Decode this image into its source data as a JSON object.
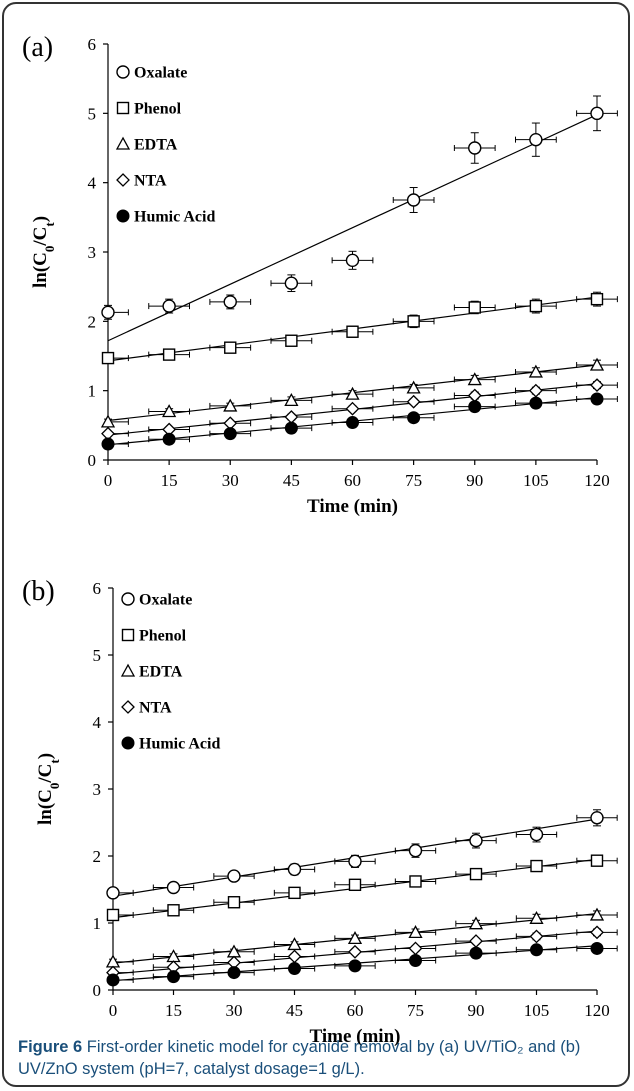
{
  "caption": {
    "figure_number": "Figure 6",
    "text": "First-order kinetic model for cyanide removal by (a) UV/TiO₂ and (b) UV/ZnO system (pH=7, catalyst dosage=1 g/L)."
  },
  "colors": {
    "ink": "#000000",
    "caption": "#1a4f7a",
    "frame": "#333333"
  },
  "chart_data": [
    {
      "type": "scatter",
      "panel_label": "(a)",
      "xlabel": "Time (min)",
      "ylabel": "ln(C0/Ct)",
      "xlim": [
        0,
        120
      ],
      "ylim": [
        0,
        6
      ],
      "x_ticks": [
        0,
        15,
        30,
        45,
        60,
        75,
        90,
        105,
        120
      ],
      "y_ticks": [
        0,
        1,
        2,
        3,
        4,
        5,
        6
      ],
      "legend_position": "top-left",
      "x_error": 5,
      "x": [
        0,
        15,
        30,
        45,
        60,
        75,
        90,
        105,
        120
      ],
      "series": [
        {
          "name": "Oxalate",
          "marker": "circle",
          "values": [
            2.13,
            2.22,
            2.28,
            2.55,
            2.88,
            3.75,
            4.5,
            4.62,
            5.0
          ],
          "y_error": [
            0.1,
            0.1,
            0.1,
            0.12,
            0.13,
            0.18,
            0.22,
            0.24,
            0.25
          ],
          "fit": [
            1.72,
            4.98
          ]
        },
        {
          "name": "Phenol",
          "marker": "square",
          "values": [
            1.47,
            1.52,
            1.62,
            1.72,
            1.85,
            2.0,
            2.2,
            2.22,
            2.32
          ],
          "y_error": [
            0.05,
            0.05,
            0.06,
            0.07,
            0.08,
            0.09,
            0.09,
            0.1,
            0.1
          ],
          "fit": [
            1.43,
            2.35
          ]
        },
        {
          "name": "EDTA",
          "marker": "triangle",
          "values": [
            0.55,
            0.7,
            0.78,
            0.86,
            0.95,
            1.04,
            1.16,
            1.27,
            1.37
          ],
          "y_error": [
            0.04,
            0.04,
            0.04,
            0.05,
            0.05,
            0.05,
            0.06,
            0.06,
            0.07
          ],
          "fit": [
            0.57,
            1.37
          ]
        },
        {
          "name": "NTA",
          "marker": "diamond",
          "values": [
            0.38,
            0.44,
            0.53,
            0.62,
            0.74,
            0.84,
            0.93,
            1.0,
            1.08
          ],
          "y_error": [
            0.03,
            0.03,
            0.03,
            0.04,
            0.04,
            0.04,
            0.05,
            0.05,
            0.05
          ],
          "fit": [
            0.36,
            1.1
          ]
        },
        {
          "name": "Humic Acid",
          "marker": "filled-circle",
          "values": [
            0.23,
            0.3,
            0.38,
            0.46,
            0.54,
            0.61,
            0.77,
            0.82,
            0.88
          ],
          "y_error": [
            0.03,
            0.03,
            0.03,
            0.03,
            0.04,
            0.04,
            0.04,
            0.04,
            0.05
          ],
          "fit": [
            0.22,
            0.9
          ]
        }
      ]
    },
    {
      "type": "scatter",
      "panel_label": "(b)",
      "xlabel": "Time (min)",
      "ylabel": "ln(C0/Ct)",
      "xlim": [
        0,
        120
      ],
      "ylim": [
        0,
        6
      ],
      "x_ticks": [
        0,
        15,
        30,
        45,
        60,
        75,
        90,
        105,
        120
      ],
      "y_ticks": [
        0,
        1,
        2,
        3,
        4,
        5,
        6
      ],
      "legend_position": "top-left",
      "x_error": 5,
      "x": [
        0,
        15,
        30,
        45,
        60,
        75,
        90,
        105,
        120
      ],
      "series": [
        {
          "name": "Oxalate",
          "marker": "circle",
          "values": [
            1.45,
            1.53,
            1.7,
            1.8,
            1.92,
            2.08,
            2.23,
            2.32,
            2.57
          ],
          "y_error": [
            0.06,
            0.06,
            0.07,
            0.08,
            0.09,
            0.1,
            0.11,
            0.11,
            0.12
          ],
          "fit": [
            1.4,
            2.55
          ]
        },
        {
          "name": "Phenol",
          "marker": "square",
          "values": [
            1.12,
            1.19,
            1.31,
            1.45,
            1.57,
            1.62,
            1.73,
            1.85,
            1.93
          ],
          "y_error": [
            0.05,
            0.05,
            0.05,
            0.06,
            0.06,
            0.07,
            0.07,
            0.08,
            0.08
          ],
          "fit": [
            1.08,
            1.95
          ]
        },
        {
          "name": "EDTA",
          "marker": "triangle",
          "values": [
            0.42,
            0.5,
            0.57,
            0.68,
            0.77,
            0.86,
            0.99,
            1.07,
            1.12
          ],
          "y_error": [
            0.04,
            0.04,
            0.04,
            0.04,
            0.05,
            0.05,
            0.05,
            0.06,
            0.06
          ],
          "fit": [
            0.4,
            1.14
          ]
        },
        {
          "name": "NTA",
          "marker": "diamond",
          "values": [
            0.26,
            0.34,
            0.41,
            0.5,
            0.57,
            0.62,
            0.73,
            0.8,
            0.86
          ],
          "y_error": [
            0.03,
            0.03,
            0.03,
            0.04,
            0.04,
            0.04,
            0.04,
            0.05,
            0.05
          ],
          "fit": [
            0.24,
            0.88
          ]
        },
        {
          "name": "Humic Acid",
          "marker": "filled-circle",
          "values": [
            0.15,
            0.2,
            0.26,
            0.32,
            0.36,
            0.44,
            0.55,
            0.6,
            0.62
          ],
          "y_error": [
            0.03,
            0.03,
            0.03,
            0.03,
            0.03,
            0.04,
            0.04,
            0.04,
            0.04
          ],
          "fit": [
            0.14,
            0.66
          ]
        }
      ]
    }
  ]
}
